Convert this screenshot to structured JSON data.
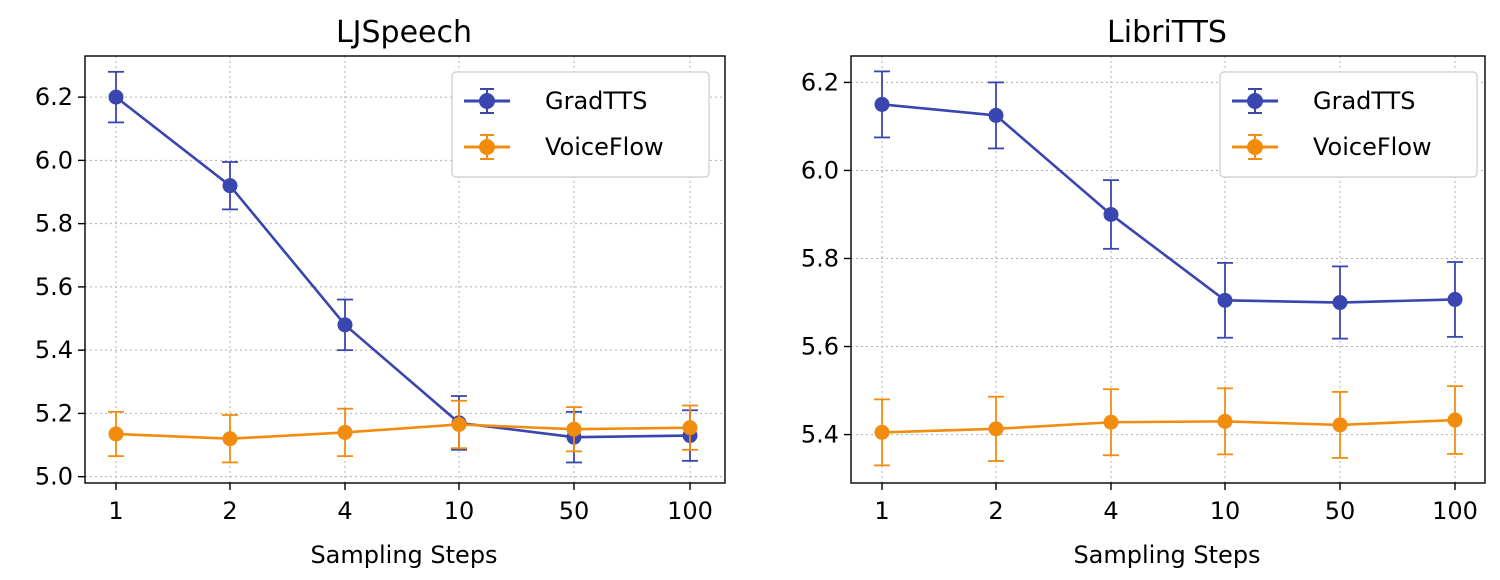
{
  "chart_data": [
    {
      "type": "line",
      "title": "LJSpeech",
      "xlabel": "Sampling Steps",
      "ylabel": "",
      "categories": [
        "1",
        "2",
        "4",
        "10",
        "50",
        "100"
      ],
      "ylim": [
        4.98,
        6.33
      ],
      "yticks": [
        "5.0",
        "5.2",
        "5.4",
        "5.6",
        "5.8",
        "6.0",
        "6.2"
      ],
      "grid": true,
      "legend_position": "top-right",
      "series": [
        {
          "name": "GradTTS",
          "color": "#3a46b0",
          "values": [
            6.2,
            5.92,
            5.48,
            5.17,
            5.125,
            5.13
          ],
          "errors": [
            0.08,
            0.075,
            0.08,
            0.085,
            0.08,
            0.08
          ]
        },
        {
          "name": "VoiceFlow",
          "color": "#f28c0e",
          "values": [
            5.135,
            5.12,
            5.14,
            5.165,
            5.15,
            5.155
          ],
          "errors": [
            0.07,
            0.075,
            0.075,
            0.075,
            0.07,
            0.07
          ]
        }
      ]
    },
    {
      "type": "line",
      "title": "LibriTTS",
      "xlabel": "Sampling Steps",
      "ylabel": "",
      "categories": [
        "1",
        "2",
        "4",
        "10",
        "50",
        "100"
      ],
      "ylim": [
        5.29,
        6.26
      ],
      "yticks": [
        "5.4",
        "5.6",
        "5.8",
        "6.0",
        "6.2"
      ],
      "grid": true,
      "legend_position": "top-right",
      "series": [
        {
          "name": "GradTTS",
          "color": "#3a46b0",
          "values": [
            6.15,
            6.125,
            5.9,
            5.705,
            5.7,
            5.707
          ],
          "errors": [
            0.075,
            0.075,
            0.078,
            0.085,
            0.082,
            0.085
          ]
        },
        {
          "name": "VoiceFlow",
          "color": "#f28c0e",
          "values": [
            5.405,
            5.413,
            5.428,
            5.43,
            5.422,
            5.433
          ],
          "errors": [
            0.075,
            0.073,
            0.075,
            0.075,
            0.075,
            0.077
          ]
        }
      ]
    }
  ]
}
